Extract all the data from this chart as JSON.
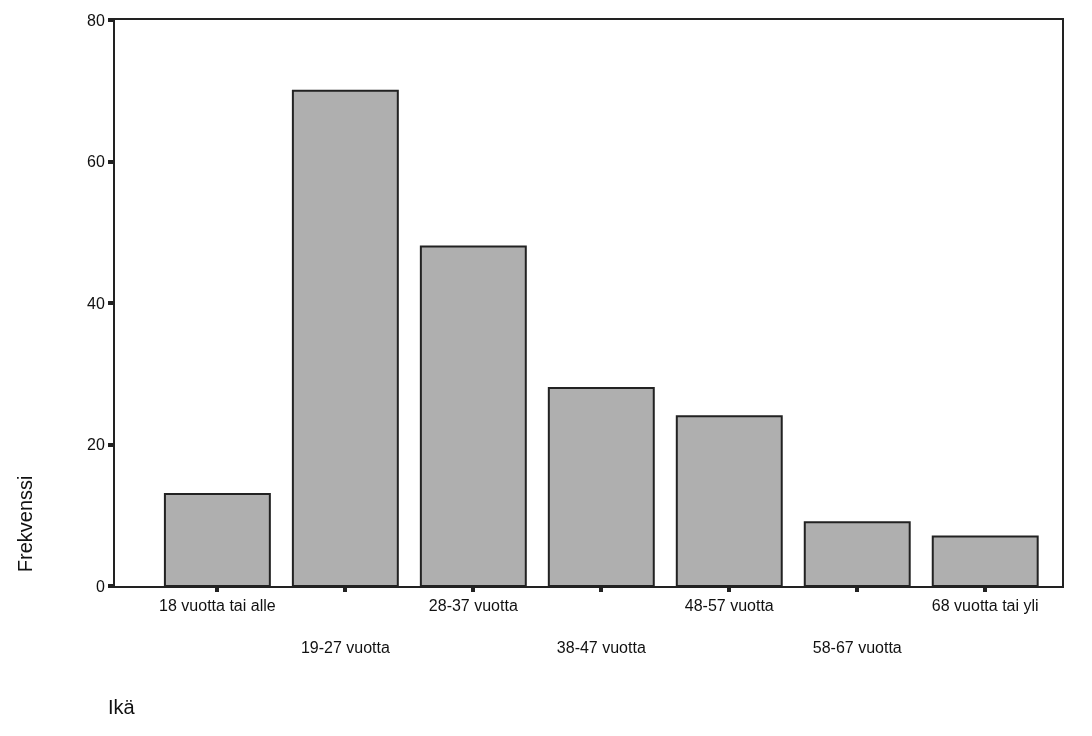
{
  "chart_data": {
    "type": "bar",
    "xlabel": "Ikä",
    "ylabel": "Frekvenssi",
    "categories": [
      "18 vuotta tai alle",
      "19-27 vuotta",
      "28-37 vuotta",
      "38-47 vuotta",
      "48-57 vuotta",
      "58-67 vuotta",
      "68 vuotta tai yli"
    ],
    "values": [
      13,
      70,
      48,
      28,
      24,
      9,
      7
    ],
    "color": "#afafaf",
    "ylim": [
      0,
      80
    ],
    "yticks": [
      0,
      20,
      40,
      60,
      80
    ]
  }
}
